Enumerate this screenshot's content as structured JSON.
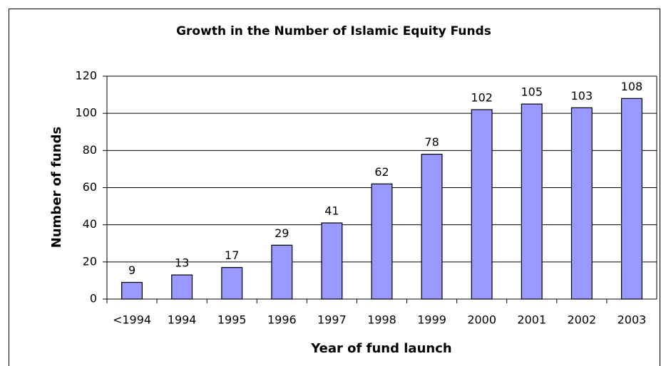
{
  "chart_data": {
    "type": "bar",
    "title": "Growth in the Number of Islamic Equity Funds",
    "x_label": "Year of fund launch",
    "y_label": "Number of funds",
    "categories": [
      "<1994",
      "1994",
      "1995",
      "1996",
      "1997",
      "1998",
      "1999",
      "2000",
      "2001",
      "2002",
      "2003"
    ],
    "values": [
      9,
      13,
      17,
      29,
      41,
      62,
      78,
      102,
      105,
      103,
      108
    ],
    "color": "#9999ff",
    "ylim": [
      0,
      120
    ],
    "yticks": [
      0,
      20,
      40,
      60,
      80,
      100,
      120
    ],
    "grid": true
  }
}
